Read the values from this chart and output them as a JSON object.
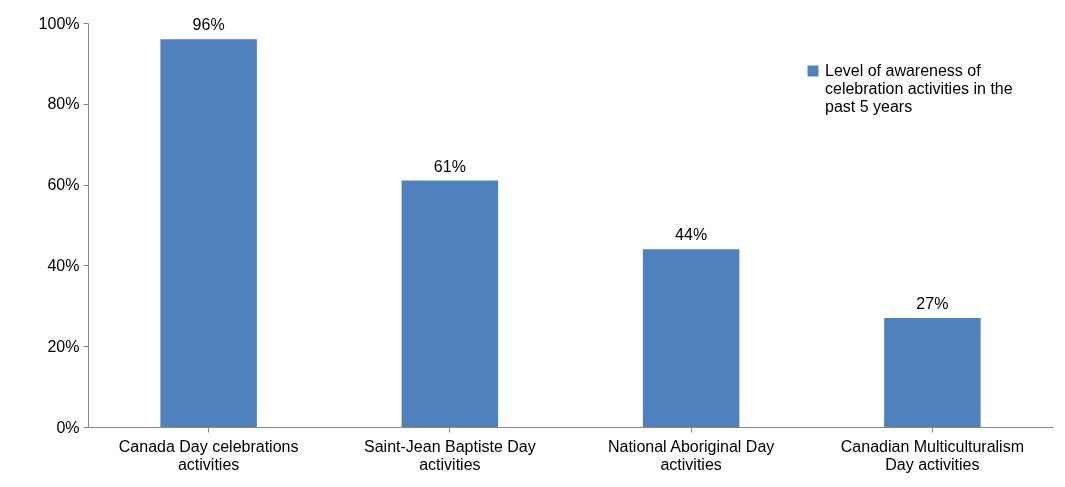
{
  "chart_data": {
    "type": "bar",
    "categories": [
      "Canada Day celebrations activities",
      "Saint-Jean Baptiste Day activities",
      "National Aboriginal Day activities",
      "Canadian Multiculturalism Day activities"
    ],
    "series": [
      {
        "name": "Level of awareness of celebration activities in the past 5 years",
        "color": "#4f81bd",
        "values": [
          96,
          61,
          44,
          27
        ]
      }
    ],
    "ylim": [
      0,
      100
    ],
    "yticks": [
      {
        "value": 0,
        "label": "0%"
      },
      {
        "value": 20,
        "label": "20%"
      },
      {
        "value": 40,
        "label": "40%"
      },
      {
        "value": 60,
        "label": "60%"
      },
      {
        "value": 80,
        "label": "80%"
      },
      {
        "value": 100,
        "label": "100%"
      }
    ],
    "value_labels": [
      "96%",
      "61%",
      "44%",
      "27%"
    ],
    "grid": false,
    "legend": "top right"
  }
}
